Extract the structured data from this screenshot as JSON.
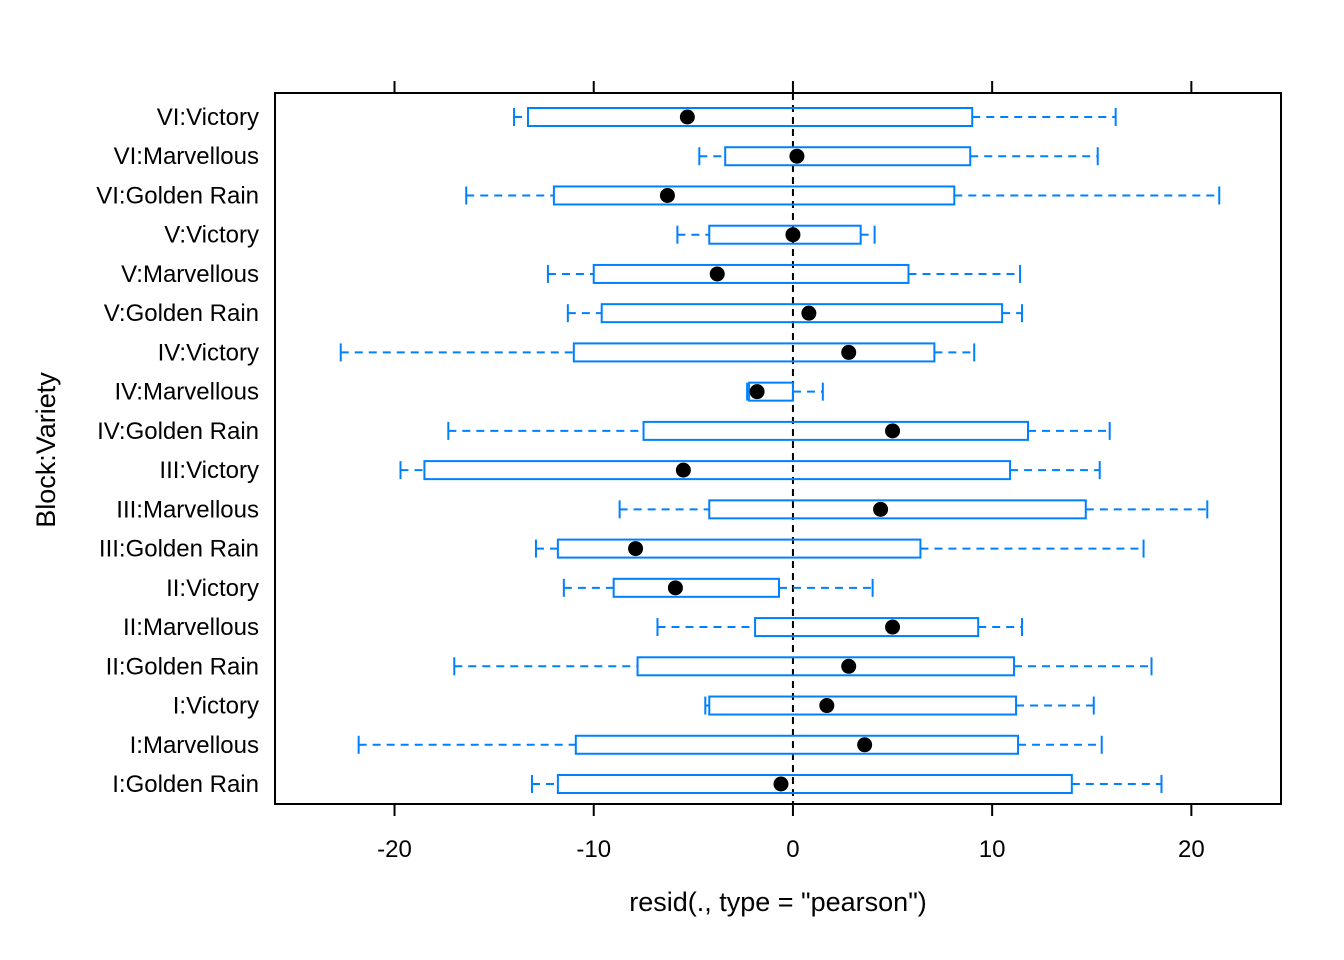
{
  "chart_data": {
    "type": "boxplot",
    "orientation": "horizontal",
    "xlabel": "resid(., type = \"pearson\")",
    "ylabel": "Block:Variety",
    "xlim": [
      -26,
      24.5
    ],
    "xticks": [
      -20,
      -10,
      0,
      10,
      20
    ],
    "xtick_labels": [
      "-20",
      "-10",
      "0",
      "10",
      "20"
    ],
    "reference_line_x": 0,
    "grid": false,
    "colors": {
      "box": "#0080ff",
      "median": "#000000",
      "reference": "#000000",
      "frame": "#000000"
    },
    "categories": [
      "I:Golden Rain",
      "I:Marvellous",
      "I:Victory",
      "II:Golden Rain",
      "II:Marvellous",
      "II:Victory",
      "III:Golden Rain",
      "III:Marvellous",
      "III:Victory",
      "IV:Golden Rain",
      "IV:Marvellous",
      "IV:Victory",
      "V:Golden Rain",
      "V:Marvellous",
      "V:Victory",
      "VI:Golden Rain",
      "VI:Marvellous",
      "VI:Victory"
    ],
    "boxes": [
      {
        "whisker_low": -13.1,
        "q1": -11.8,
        "median": -0.6,
        "q3": 14.0,
        "whisker_high": 18.5
      },
      {
        "whisker_low": -21.8,
        "q1": -10.9,
        "median": 3.6,
        "q3": 11.3,
        "whisker_high": 15.5
      },
      {
        "whisker_low": -4.4,
        "q1": -4.2,
        "median": 1.7,
        "q3": 11.2,
        "whisker_high": 15.1
      },
      {
        "whisker_low": -17.0,
        "q1": -7.8,
        "median": 2.8,
        "q3": 11.1,
        "whisker_high": 18.0
      },
      {
        "whisker_low": -6.8,
        "q1": -1.9,
        "median": 5.0,
        "q3": 9.3,
        "whisker_high": 11.5
      },
      {
        "whisker_low": -11.5,
        "q1": -9.0,
        "median": -5.9,
        "q3": -0.7,
        "whisker_high": 4.0
      },
      {
        "whisker_low": -12.9,
        "q1": -11.8,
        "median": -7.9,
        "q3": 6.4,
        "whisker_high": 17.6
      },
      {
        "whisker_low": -8.7,
        "q1": -4.2,
        "median": 4.4,
        "q3": 14.7,
        "whisker_high": 20.8
      },
      {
        "whisker_low": -19.7,
        "q1": -18.5,
        "median": -5.5,
        "q3": 10.9,
        "whisker_high": 15.4
      },
      {
        "whisker_low": -17.3,
        "q1": -7.5,
        "median": 5.0,
        "q3": 11.8,
        "whisker_high": 15.9
      },
      {
        "whisker_low": -2.3,
        "q1": -2.2,
        "median": -1.8,
        "q3": 0.0,
        "whisker_high": 1.5
      },
      {
        "whisker_low": -22.7,
        "q1": -11.0,
        "median": 2.8,
        "q3": 7.1,
        "whisker_high": 9.1
      },
      {
        "whisker_low": -11.3,
        "q1": -9.6,
        "median": 0.8,
        "q3": 10.5,
        "whisker_high": 11.5
      },
      {
        "whisker_low": -12.3,
        "q1": -10.0,
        "median": -3.8,
        "q3": 5.8,
        "whisker_high": 11.4
      },
      {
        "whisker_low": -5.8,
        "q1": -4.2,
        "median": 0.0,
        "q3": 3.4,
        "whisker_high": 4.1
      },
      {
        "whisker_low": -16.4,
        "q1": -12.0,
        "median": -6.3,
        "q3": 8.1,
        "whisker_high": 21.4
      },
      {
        "whisker_low": -4.7,
        "q1": -3.4,
        "median": 0.2,
        "q3": 8.9,
        "whisker_high": 15.3
      },
      {
        "whisker_low": -14.0,
        "q1": -13.3,
        "median": -5.3,
        "q3": 9.0,
        "whisker_high": 16.2
      }
    ]
  }
}
